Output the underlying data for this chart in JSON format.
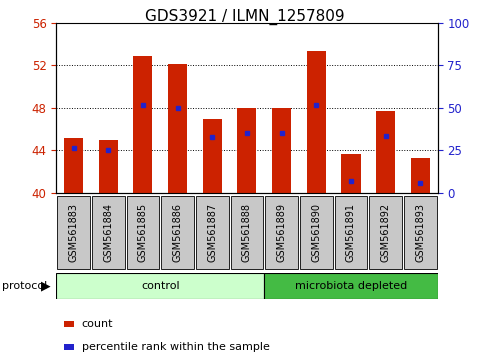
{
  "title": "GDS3921 / ILMN_1257809",
  "samples": [
    "GSM561883",
    "GSM561884",
    "GSM561885",
    "GSM561886",
    "GSM561887",
    "GSM561888",
    "GSM561889",
    "GSM561890",
    "GSM561891",
    "GSM561892",
    "GSM561893"
  ],
  "bar_values": [
    45.2,
    45.0,
    52.9,
    52.1,
    47.0,
    48.0,
    48.0,
    53.4,
    43.7,
    47.7,
    43.3
  ],
  "blue_values": [
    44.2,
    44.0,
    48.3,
    48.0,
    45.3,
    45.6,
    45.6,
    48.3,
    41.1,
    45.4,
    40.9
  ],
  "ymin": 40,
  "ymax": 56,
  "yticks_left": [
    40,
    44,
    48,
    52,
    56
  ],
  "yticks_right": [
    0,
    25,
    50,
    75,
    100
  ],
  "bar_color": "#cc2200",
  "blue_color": "#2222cc",
  "bar_width": 0.55,
  "protocol_groups": [
    {
      "label": "control",
      "start": 0,
      "end": 6,
      "color": "#ccffcc"
    },
    {
      "label": "microbiota depleted",
      "start": 6,
      "end": 11,
      "color": "#44bb44"
    }
  ],
  "legend_items": [
    {
      "label": "count",
      "color": "#cc2200"
    },
    {
      "label": "percentile rank within the sample",
      "color": "#2222cc"
    }
  ],
  "title_fontsize": 11,
  "tick_fontsize": 8.5,
  "sample_fontsize": 7
}
